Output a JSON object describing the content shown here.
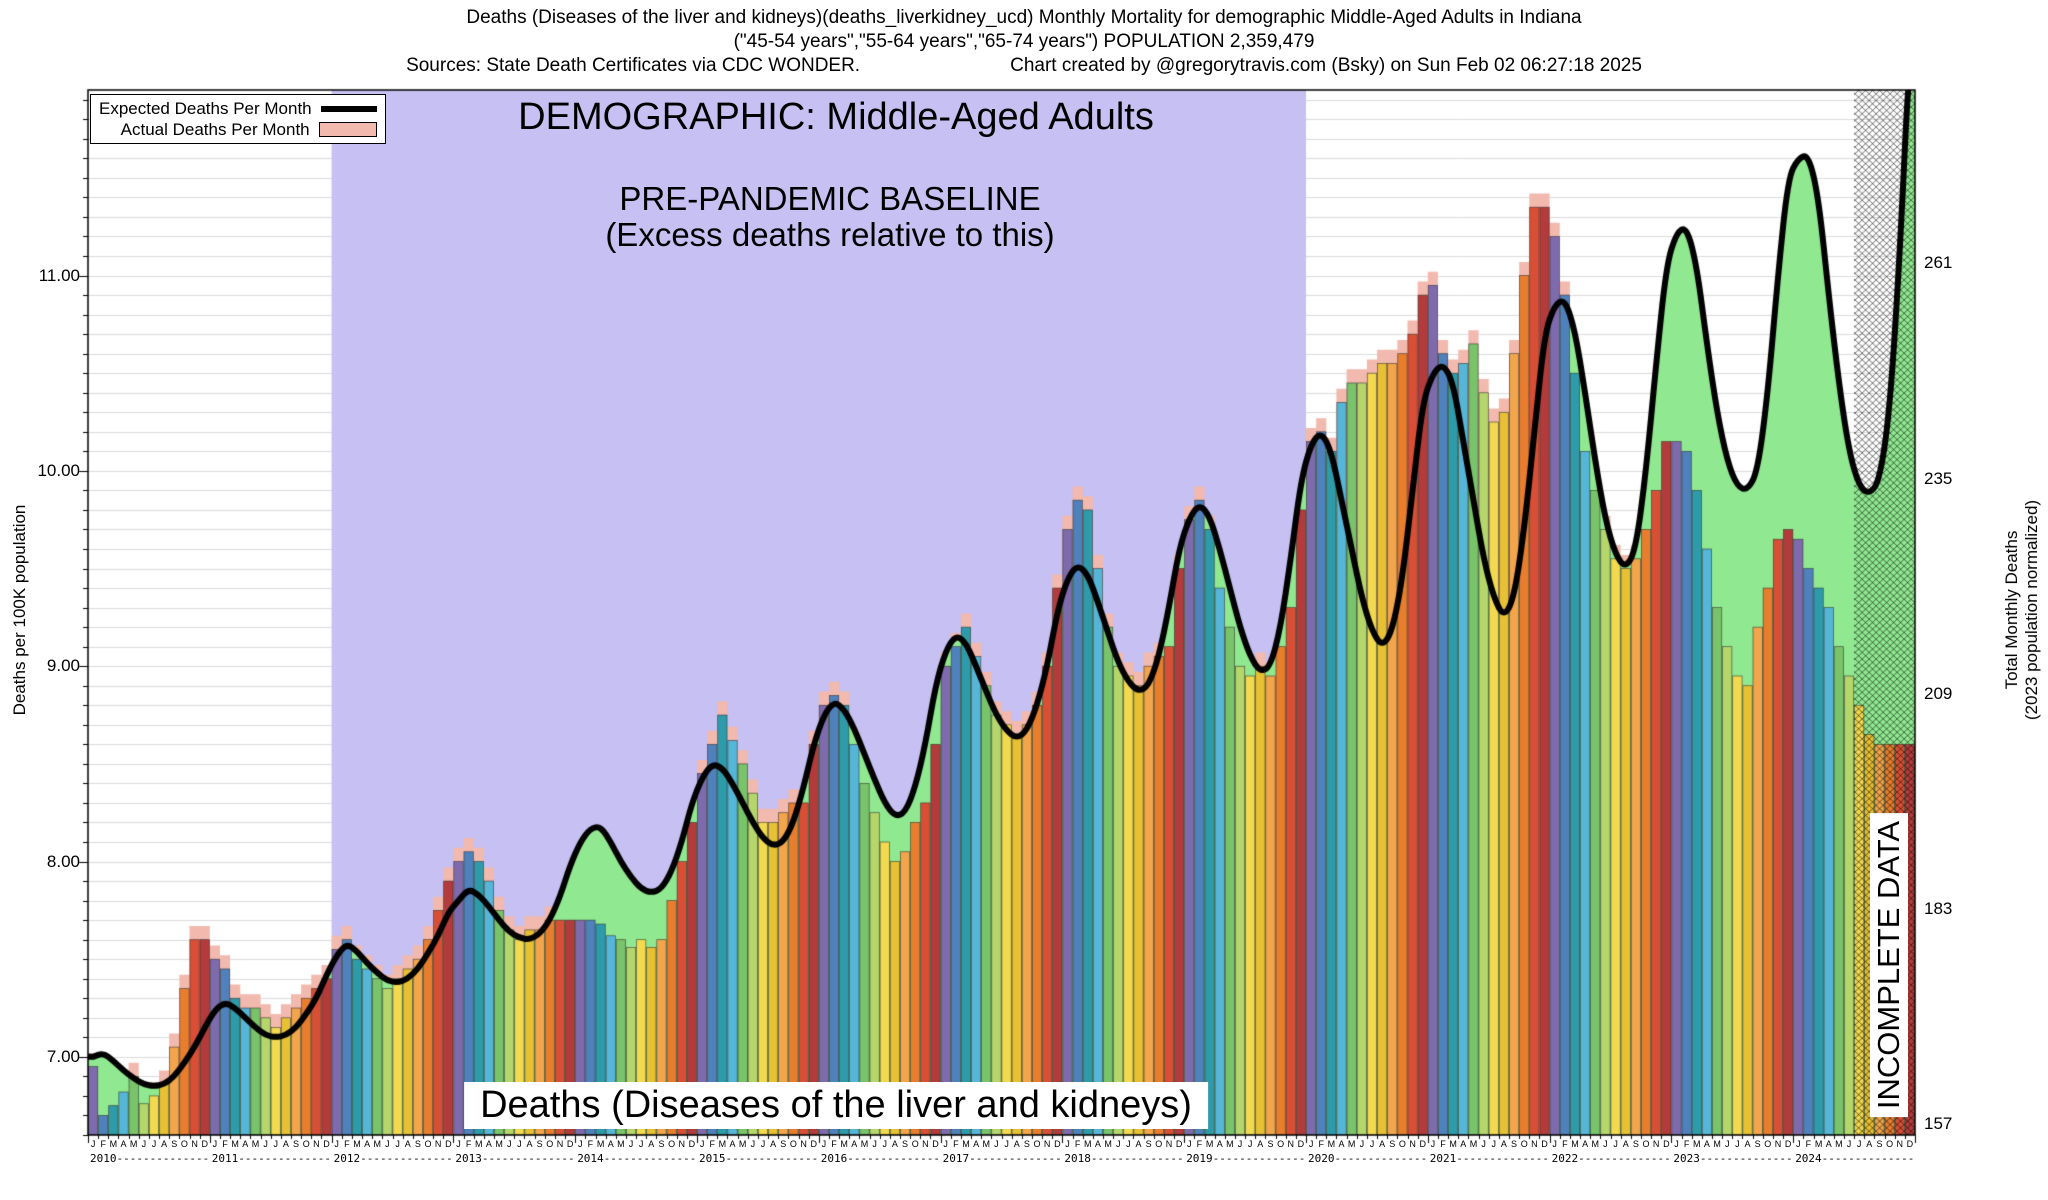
{
  "header": {
    "line1": "Deaths (Diseases of the liver and kidneys)(deaths_liverkidney_ucd) Monthly Mortality for demographic Middle-Aged Adults in Indiana",
    "line2": "(\"45-54 years\",\"55-64 years\",\"65-74 years\") POPULATION 2,359,479",
    "sources": "Sources: State Death Certificates via CDC WONDER.",
    "credit": "Chart created by @gregorytravis.com (Bsky) on Sun Feb 02 06:27:18 2025"
  },
  "legend": {
    "expected_label": "Expected Deaths Per Month",
    "actual_label": "Actual Deaths Per Month",
    "expected_color": "#000000",
    "actual_color": "#f2b9ae"
  },
  "annotations": {
    "demographic": "DEMOGRAPHIC: Middle-Aged Adults",
    "baseline_line1": "PRE-PANDEMIC BASELINE",
    "baseline_line2": "(Excess deaths relative to this)",
    "series_label": "Deaths (Diseases of the liver and kidneys)",
    "incomplete": "INCOMPLETE DATA"
  },
  "axes": {
    "y_left_title": "Deaths per 100K population",
    "y_right_title_line1": "Total Monthly Deaths",
    "y_right_title_line2": "(2023 population normalized)",
    "y_left_ticks": [
      {
        "value": 7.0,
        "label": "7.00"
      },
      {
        "value": 8.0,
        "label": "8.00"
      },
      {
        "value": 9.0,
        "label": "9.00"
      },
      {
        "value": 10.0,
        "label": "10.00"
      },
      {
        "value": 11.0,
        "label": "11.00"
      }
    ],
    "y_right_ticks": [
      {
        "value": 6.654,
        "label": "157"
      },
      {
        "value": 7.756,
        "label": "183"
      },
      {
        "value": 8.858,
        "label": "209"
      },
      {
        "value": 9.96,
        "label": "235"
      },
      {
        "value": 11.062,
        "label": "261"
      }
    ]
  },
  "chart_data": {
    "type": "bar",
    "title": "Deaths (Diseases of the liver and kidneys) Monthly Mortality, Middle-Aged Adults, Indiana",
    "ylabel": "Deaths per 100K population",
    "y2label": "Total Monthly Deaths (2023 population normalized)",
    "population": 2359479,
    "ylim": [
      6.6,
      11.95
    ],
    "grid_step": 0.1,
    "years": [
      2010,
      2011,
      2012,
      2013,
      2014,
      2015,
      2016,
      2017,
      2018,
      2019,
      2020,
      2021,
      2022,
      2023,
      2024
    ],
    "month_letters": [
      "J",
      "F",
      "M",
      "A",
      "M",
      "J",
      "J",
      "A",
      "S",
      "O",
      "N",
      "D"
    ],
    "baseline_band_years": [
      2012,
      2019
    ],
    "incomplete_from_index": 174,
    "month_colors": [
      "#7e6bad",
      "#4f81bd",
      "#2e9bab",
      "#55b6d8",
      "#79c36a",
      "#b5d66b",
      "#f2d94f",
      "#e8c033",
      "#f2a54a",
      "#e87d2e",
      "#d94f35",
      "#b43b3b"
    ],
    "colors": {
      "band": "#c7c0f2",
      "excess_green": "#90e890",
      "actual_fill": "#f2b9ae",
      "expected_line": "#000000",
      "grid": "#dcdcdc"
    },
    "series": [
      {
        "name": "Actual Deaths Per Month",
        "values_by_year": [
          [
            6.95,
            6.7,
            6.75,
            6.82,
            6.9,
            6.76,
            6.8,
            6.86,
            7.05,
            7.35,
            7.6,
            7.6
          ],
          [
            7.5,
            7.45,
            7.3,
            7.25,
            7.25,
            7.2,
            7.15,
            7.2,
            7.25,
            7.3,
            7.35,
            7.4
          ],
          [
            7.55,
            7.6,
            7.5,
            7.45,
            7.4,
            7.35,
            7.4,
            7.45,
            7.5,
            7.6,
            7.75,
            7.9
          ],
          [
            8.0,
            8.05,
            8.0,
            7.9,
            7.75,
            7.65,
            7.6,
            7.65,
            7.65,
            7.7,
            7.7,
            7.7
          ],
          [
            7.7,
            7.7,
            7.68,
            7.62,
            7.6,
            7.56,
            7.6,
            7.56,
            7.6,
            7.8,
            8.0,
            8.2
          ],
          [
            8.45,
            8.6,
            8.75,
            8.62,
            8.5,
            8.35,
            8.2,
            8.2,
            8.25,
            8.3,
            8.3,
            8.6
          ],
          [
            8.8,
            8.85,
            8.8,
            8.6,
            8.4,
            8.25,
            8.1,
            8.0,
            8.05,
            8.2,
            8.3,
            8.6
          ],
          [
            9.0,
            9.1,
            9.2,
            9.05,
            8.9,
            8.75,
            8.7,
            8.65,
            8.7,
            8.8,
            9.0,
            9.4
          ],
          [
            9.7,
            9.85,
            9.8,
            9.5,
            9.2,
            9.0,
            8.95,
            8.9,
            9.0,
            9.05,
            9.1,
            9.5
          ],
          [
            9.75,
            9.85,
            9.7,
            9.4,
            9.2,
            9.0,
            8.95,
            9.0,
            8.95,
            9.1,
            9.3,
            9.8
          ],
          [
            10.15,
            10.2,
            10.1,
            10.35,
            10.45,
            10.45,
            10.5,
            10.55,
            10.55,
            10.6,
            10.7,
            10.9
          ],
          [
            10.95,
            10.6,
            10.5,
            10.55,
            10.65,
            10.4,
            10.25,
            10.3,
            10.6,
            11.0,
            11.35,
            11.35
          ],
          [
            11.2,
            10.9,
            10.5,
            10.1,
            9.9,
            9.7,
            9.55,
            9.5,
            9.55,
            9.7,
            9.9,
            10.15
          ],
          [
            10.15,
            10.1,
            9.9,
            9.6,
            9.3,
            9.1,
            8.95,
            8.9,
            9.2,
            9.4,
            9.65,
            9.7
          ],
          [
            9.65,
            9.5,
            9.4,
            9.3,
            9.1,
            8.95,
            8.8,
            8.65,
            8.6,
            8.6,
            8.6,
            8.6
          ]
        ]
      },
      {
        "name": "Expected Deaths Per Month",
        "values_by_year": [
          [
            7.0,
            7.02,
            6.98,
            6.93,
            6.89,
            6.86,
            6.85,
            6.86,
            6.9,
            6.97,
            7.05,
            7.15
          ],
          [
            7.24,
            7.28,
            7.25,
            7.2,
            7.15,
            7.11,
            7.1,
            7.11,
            7.15,
            7.22,
            7.3,
            7.42
          ],
          [
            7.52,
            7.58,
            7.54,
            7.48,
            7.43,
            7.39,
            7.38,
            7.4,
            7.45,
            7.53,
            7.62,
            7.74
          ],
          [
            7.8,
            7.86,
            7.83,
            7.77,
            7.7,
            7.64,
            7.61,
            7.6,
            7.63,
            7.7,
            7.82,
            7.98
          ],
          [
            8.1,
            8.17,
            8.18,
            8.1,
            8.0,
            7.92,
            7.86,
            7.84,
            7.86,
            7.95,
            8.1,
            8.3
          ],
          [
            8.43,
            8.5,
            8.48,
            8.4,
            8.3,
            8.2,
            8.12,
            8.08,
            8.1,
            8.2,
            8.38,
            8.6
          ],
          [
            8.75,
            8.82,
            8.78,
            8.68,
            8.55,
            8.42,
            8.3,
            8.23,
            8.25,
            8.38,
            8.6,
            8.9
          ],
          [
            9.08,
            9.16,
            9.12,
            9.0,
            8.87,
            8.75,
            8.67,
            8.63,
            8.67,
            8.8,
            9.0,
            9.28
          ],
          [
            9.45,
            9.52,
            9.47,
            9.33,
            9.17,
            9.02,
            8.92,
            8.87,
            8.9,
            9.05,
            9.3,
            9.6
          ],
          [
            9.76,
            9.83,
            9.77,
            9.6,
            9.4,
            9.2,
            9.05,
            8.97,
            9.0,
            9.2,
            9.55,
            9.95
          ],
          [
            10.14,
            10.2,
            10.1,
            9.85,
            9.6,
            9.35,
            9.18,
            9.1,
            9.18,
            9.45,
            9.9,
            10.35
          ],
          [
            10.5,
            10.55,
            10.45,
            10.15,
            9.85,
            9.55,
            9.35,
            9.25,
            9.35,
            9.7,
            10.2,
            10.7
          ],
          [
            10.85,
            10.88,
            10.72,
            10.4,
            10.05,
            9.75,
            9.57,
            9.5,
            9.6,
            10.0,
            10.55,
            11.05
          ],
          [
            11.22,
            11.25,
            11.05,
            10.65,
            10.3,
            10.05,
            9.92,
            9.9,
            10.0,
            10.4,
            11.0,
            11.5
          ],
          [
            11.6,
            11.62,
            11.4,
            10.9,
            10.45,
            10.1,
            9.92,
            9.88,
            9.95,
            10.3,
            11.1,
            12.2
          ]
        ]
      }
    ]
  }
}
